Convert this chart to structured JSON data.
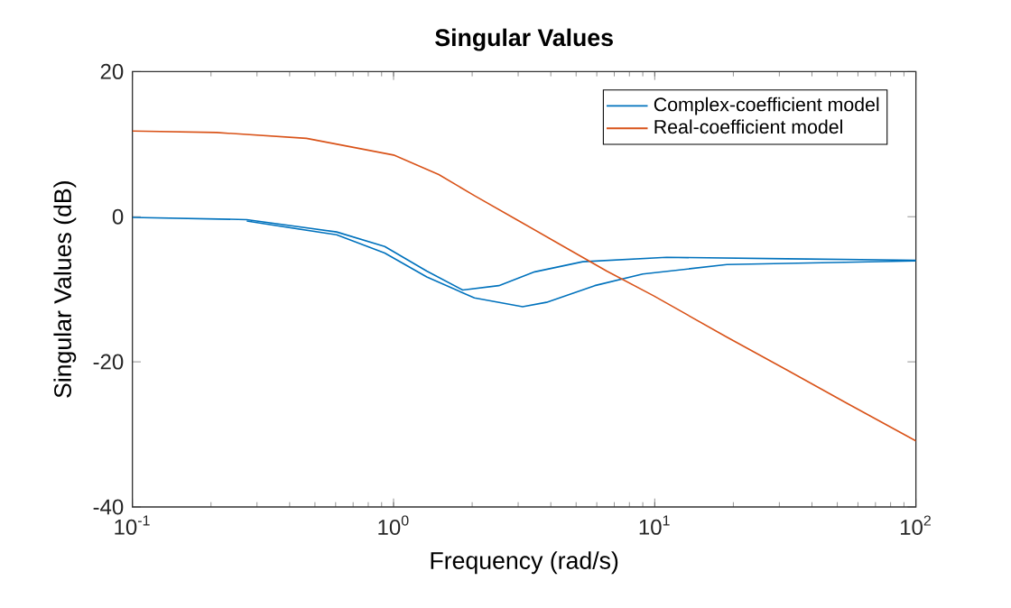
{
  "chart_data": {
    "type": "line",
    "title": "Singular Values",
    "xlabel": "Frequency (rad/s)",
    "ylabel": "Singular Values (dB)",
    "log": "x",
    "xlim": [
      0.1,
      100
    ],
    "ylim": [
      -40,
      20
    ],
    "xticks": [
      {
        "value": 0.1,
        "label": "10$^{-1}$"
      },
      {
        "value": 1,
        "label": "10$^{0}$"
      },
      {
        "value": 10,
        "label": "10$^{1}$"
      },
      {
        "value": 100,
        "label": "10$^{2}$"
      }
    ],
    "yticks": [
      -40,
      -20,
      0,
      20
    ],
    "grid": false,
    "legend": "top right",
    "series": [
      {
        "name": "Complex-coefficient model",
        "color": "#0072bd",
        "x": [
          0.1,
          0.274,
          0.605,
          0.925,
          1.34,
          1.84,
          2.53,
          3.47,
          5.3,
          11.1,
          32,
          100
        ],
        "values": [
          -0.1,
          -0.4,
          -2.1,
          -4.1,
          -7.5,
          -10.1,
          -9.5,
          -7.6,
          -6.2,
          -5.6,
          -5.8,
          -6.0
        ]
      },
      {
        "color": "#0072bd",
        "x": [
          0.274,
          0.605,
          0.925,
          1.34,
          2.04,
          3.12,
          3.85,
          5.89,
          9.0,
          18.9,
          100
        ],
        "values": [
          -0.6,
          -2.5,
          -5.0,
          -8.3,
          -11.2,
          -12.4,
          -11.8,
          -9.5,
          -7.9,
          -6.6,
          -6.1
        ]
      },
      {
        "name": "Real-coefficient model",
        "color": "#d95319",
        "x": [
          0.1,
          0.21,
          0.464,
          1.0,
          1.49,
          2.04,
          2.96,
          4.28,
          6.55,
          9.9,
          18.9,
          32,
          54.4,
          100
        ],
        "values": [
          11.8,
          11.6,
          10.8,
          8.5,
          5.8,
          2.9,
          -0.4,
          -3.7,
          -7.5,
          -10.9,
          -16.6,
          -21.1,
          -25.7,
          -30.9
        ]
      }
    ]
  }
}
